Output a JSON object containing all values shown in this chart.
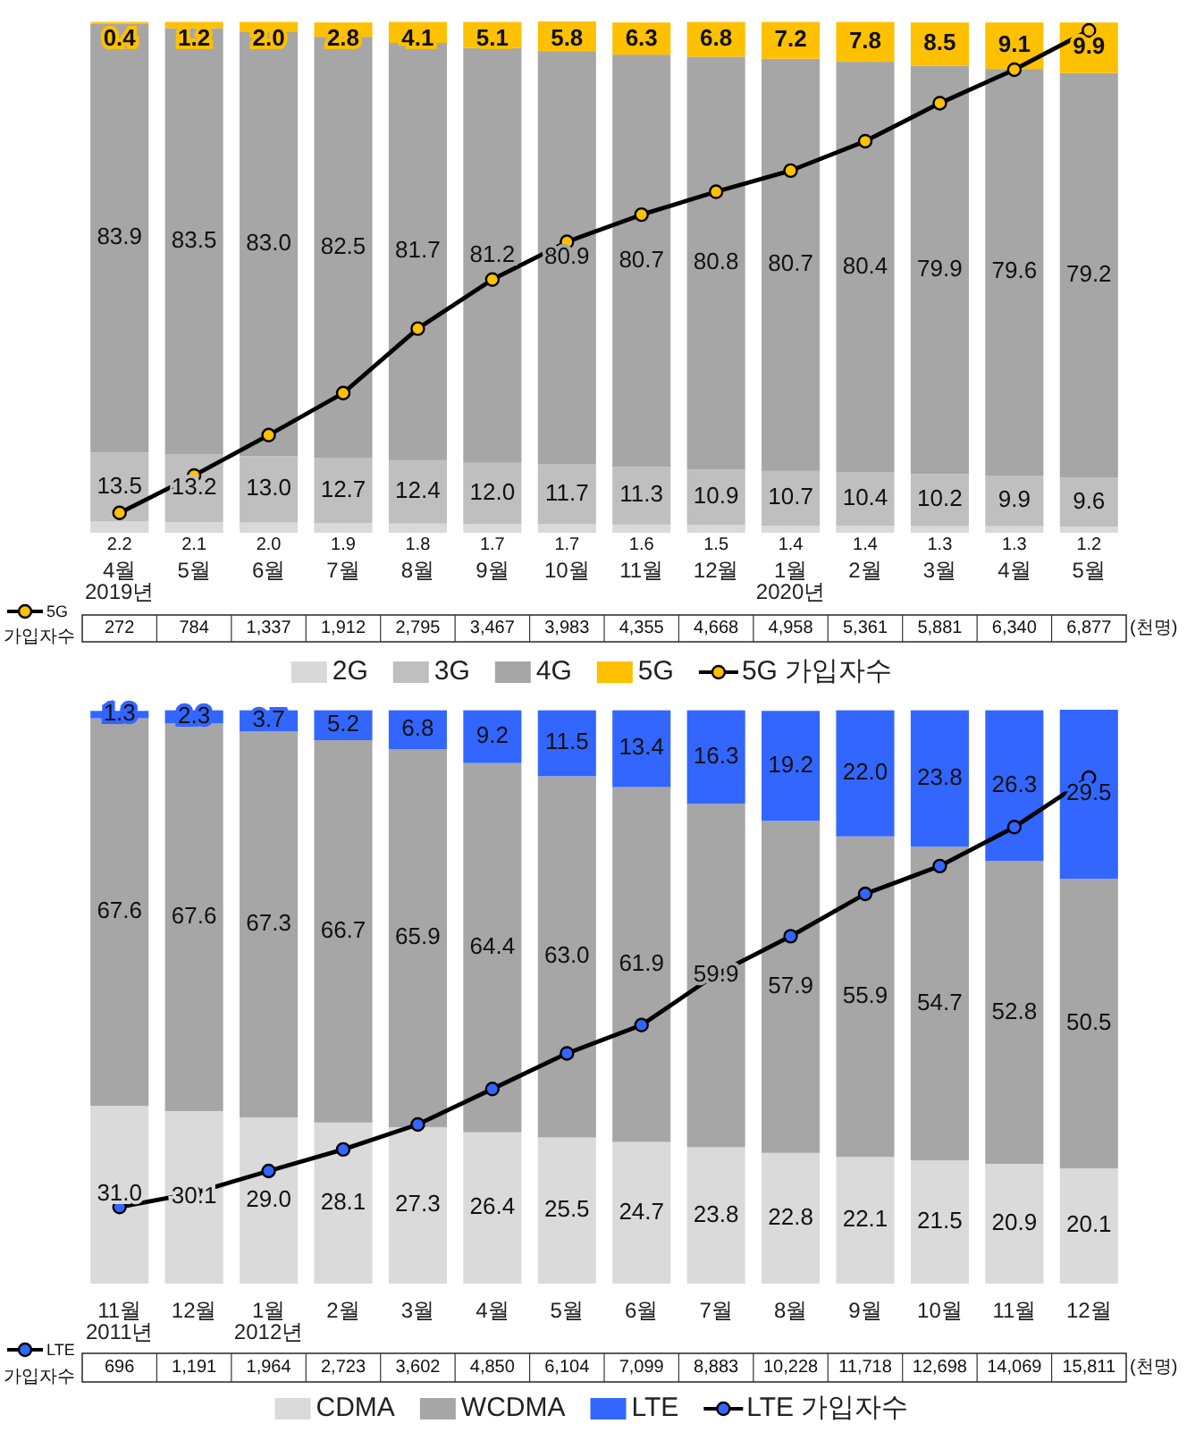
{
  "chart_data": [
    {
      "type": "bar",
      "stacked": true,
      "data_labels": true,
      "legend": "bottom",
      "marker": "circle",
      "y2lim": [
        0,
        7000
      ],
      "annotations": [
        "(천명)"
      ],
      "categories": [
        "4월\n2019년",
        "5월",
        "6월",
        "7월",
        "8월",
        "9월",
        "10월",
        "11월",
        "12월",
        "1월\n2020년",
        "2월",
        "3월",
        "4월",
        "5월"
      ],
      "series": [
        {
          "name": "2G",
          "color": "#d9d9d9",
          "values": [
            2.2,
            2.1,
            2.0,
            1.9,
            1.8,
            1.7,
            1.7,
            1.6,
            1.5,
            1.4,
            1.4,
            1.3,
            1.3,
            1.2
          ],
          "value_labels": [
            "2.2",
            "2.1",
            "2.0",
            "1.9",
            "1.8",
            "1.7",
            "1.7",
            "1.6",
            "1.5",
            "1.4",
            "1.4",
            "1.3",
            "1.3",
            "1.2"
          ]
        },
        {
          "name": "3G",
          "color": "#bfbfbf",
          "values": [
            13.5,
            13.2,
            13.0,
            12.7,
            12.4,
            12.0,
            11.7,
            11.3,
            10.9,
            10.7,
            10.4,
            10.2,
            9.9,
            9.6
          ],
          "value_labels": [
            "13.5",
            "13.2",
            "13.0",
            "12.7",
            "12.4",
            "12.0",
            "11.7",
            "11.3",
            "10.9",
            "10.7",
            "10.4",
            "10.2",
            "9.9",
            "9.6"
          ]
        },
        {
          "name": "4G",
          "color": "#a6a6a6",
          "values": [
            83.9,
            83.5,
            83.0,
            82.5,
            81.7,
            81.2,
            80.9,
            80.7,
            80.8,
            80.7,
            80.4,
            79.9,
            79.6,
            79.2
          ],
          "value_labels": [
            "83.9",
            "83.5",
            "83.0",
            "82.5",
            "81.7",
            "81.2",
            "80.9",
            "80.7",
            "80.8",
            "80.7",
            "80.4",
            "79.9",
            "79.6",
            "79.2"
          ]
        },
        {
          "name": "5G",
          "color": "#ffc000",
          "values": [
            0.4,
            1.2,
            2.0,
            2.8,
            4.1,
            5.1,
            5.8,
            6.3,
            6.8,
            7.2,
            7.8,
            8.5,
            9.1,
            9.9
          ],
          "value_labels": [
            "0.4",
            "1.2",
            "2.0",
            "2.8",
            "4.1",
            "5.1",
            "5.8",
            "6.3",
            "6.8",
            "7.2",
            "7.8",
            "8.5",
            "9.1",
            "9.9"
          ]
        },
        {
          "name": "5G 가입자수",
          "type": "line",
          "axis": "y2",
          "color": "#000000",
          "values": [
            272,
            784,
            1337,
            1912,
            2795,
            3467,
            3983,
            4355,
            4668,
            4958,
            5361,
            5881,
            6340,
            6877
          ],
          "value_labels": [
            "272",
            "784",
            "1,337",
            "1,912",
            "2,795",
            "3,467",
            "3,983",
            "4,355",
            "4,668",
            "4,958",
            "5,361",
            "5,881",
            "6,340",
            "6,877"
          ]
        }
      ]
    },
    {
      "type": "bar",
      "stacked": true,
      "data_labels": true,
      "legend": "bottom",
      "marker": "circle",
      "y2lim": [
        -2000,
        18200
      ],
      "annotations": [
        "(천명)"
      ],
      "categories": [
        "11월\n2011년",
        "12월",
        "1월\n2012년",
        "2월",
        "3월",
        "4월",
        "5월",
        "6월",
        "7월",
        "8월",
        "9월",
        "10월",
        "11월",
        "12월"
      ],
      "series": [
        {
          "name": "CDMA",
          "color": "#dadada",
          "values": [
            31.0,
            30.1,
            29.0,
            28.1,
            27.3,
            26.4,
            25.5,
            24.7,
            23.8,
            22.8,
            22.1,
            21.5,
            20.9,
            20.1
          ],
          "value_labels": [
            "31.0",
            "30.1",
            "29.0",
            "28.1",
            "27.3",
            "26.4",
            "25.5",
            "24.7",
            "23.8",
            "22.8",
            "22.1",
            "21.5",
            "20.9",
            "20.1"
          ]
        },
        {
          "name": "WCDMA",
          "color": "#a6a6a6",
          "values": [
            67.6,
            67.6,
            67.3,
            66.7,
            65.9,
            64.4,
            63.0,
            61.9,
            59.9,
            57.9,
            55.9,
            54.7,
            52.8,
            50.5
          ],
          "value_labels": [
            "67.6",
            "67.6",
            "67.3",
            "66.7",
            "65.9",
            "64.4",
            "63.0",
            "61.9",
            "59.9",
            "57.9",
            "55.9",
            "54.7",
            "52.8",
            "50.5"
          ]
        },
        {
          "name": "LTE",
          "color": "#3366ff",
          "values": [
            1.3,
            2.3,
            3.7,
            5.2,
            6.8,
            9.2,
            11.5,
            13.4,
            16.3,
            19.2,
            22.0,
            23.8,
            26.3,
            29.5
          ],
          "value_labels": [
            "1.3",
            "2.3",
            "3.7",
            "5.2",
            "6.8",
            "9.2",
            "11.5",
            "13.4",
            "16.3",
            "19.2",
            "22.0",
            "23.8",
            "26.3",
            "29.5"
          ]
        },
        {
          "name": "LTE 가입자수",
          "type": "line",
          "axis": "y2",
          "color": "#000000",
          "values": [
            696,
            1191,
            1964,
            2723,
            3602,
            4850,
            6104,
            7099,
            8883,
            10228,
            11718,
            12698,
            14069,
            15811
          ],
          "value_labels": [
            "696",
            "1,191",
            "1,964",
            "2,723",
            "3,602",
            "4,850",
            "6,104",
            "7,099",
            "8,883",
            "10,228",
            "11,718",
            "12,698",
            "14,069",
            "15,811"
          ]
        }
      ]
    }
  ]
}
